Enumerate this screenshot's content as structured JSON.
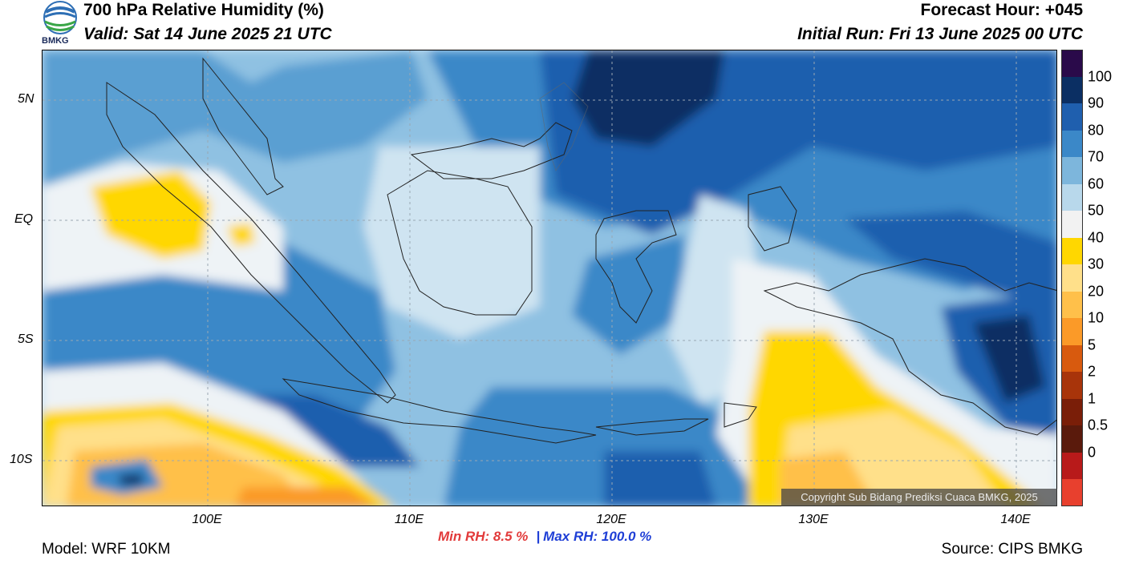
{
  "header": {
    "title": "700 hPa Relative Humidity (%)",
    "valid": "Valid: Sat 14 June 2025 21 UTC",
    "forecast_hour": "Forecast Hour: +045",
    "initial_run": "Initial Run: Fri 13 June 2025 00 UTC",
    "logo_text": "BMKG"
  },
  "map": {
    "lat_ticks": [
      "5N",
      "EQ",
      "5S",
      "10S"
    ],
    "lon_ticks": [
      "100E",
      "110E",
      "120E",
      "130E",
      "140E"
    ],
    "copyright": "Copyright Sub Bidang Prediksi Cuaca BMKG, 2025"
  },
  "colorbar": {
    "labels": [
      "100",
      "90",
      "80",
      "70",
      "60",
      "50",
      "40",
      "30",
      "20",
      "10",
      "5",
      "2",
      "1",
      "0.5",
      "0"
    ],
    "colors": [
      "#2a0a4a",
      "#0b2f63",
      "#1f5fae",
      "#3b88c8",
      "#7db6dc",
      "#b8d8eb",
      "#f2f2f2",
      "#ffd700",
      "#ffe08a",
      "#ffc04a",
      "#fb9a28",
      "#d85a0e",
      "#a8340a",
      "#7a1e08",
      "#5a1a0c",
      "#b81a1a",
      "#e8402e"
    ]
  },
  "stats": {
    "min_rh": "Min RH:   8.5 %",
    "separator": "|",
    "max_rh": "Max RH: 100.0 %"
  },
  "footer": {
    "model": "Model: WRF 10KM",
    "source": "Source: CIPS BMKG"
  },
  "colors": {
    "min_text": "#e23a3a",
    "max_text": "#1f3fd6"
  }
}
